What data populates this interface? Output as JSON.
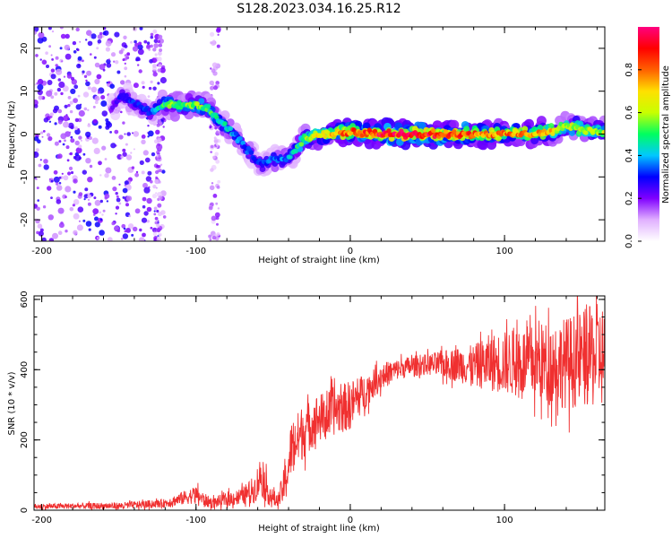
{
  "title": "S128.2023.034.16.25.R12",
  "chart_data": [
    {
      "type": "heatmap",
      "xlabel": "Height of straight line (km)",
      "ylabel": "Frequency (Hz)",
      "xlim": [
        -205,
        165
      ],
      "ylim": [
        -25,
        25
      ],
      "xticks": [
        -200,
        -100,
        0,
        100
      ],
      "yticks": [
        -20,
        -10,
        0,
        10,
        20
      ],
      "colorbar": {
        "label": "Normalized spectral amplitude",
        "range": [
          0,
          1
        ],
        "ticks": [
          "0.0",
          "0.2",
          "0.4",
          "0.6",
          "0.8"
        ],
        "colormap": [
          "#ffffff",
          "#e0b0ff",
          "#8000ff",
          "#0000ff",
          "#00c8ff",
          "#00ff60",
          "#c8ff00",
          "#ffe000",
          "#ff6000",
          "#ff0000",
          "#ff0080"
        ]
      },
      "ridge": {
        "description_points_x": [
          -155,
          -148,
          -140,
          -130,
          -120,
          -110,
          -100,
          -92,
          -85,
          -78,
          -70,
          -62,
          -57,
          -52,
          -45,
          -38,
          -30,
          -20,
          -10,
          0,
          20,
          50,
          80,
          110,
          130,
          140,
          150,
          165
        ],
        "frequency_y": [
          6,
          9,
          7,
          5,
          7,
          6.5,
          7,
          6,
          3,
          1,
          -2,
          -6,
          -7,
          -6,
          -6,
          -5,
          -1,
          0,
          0.5,
          0.5,
          0,
          0,
          0,
          0,
          0.5,
          2,
          1,
          0.5
        ],
        "amplitude": [
          0.2,
          0.3,
          0.3,
          0.3,
          0.5,
          0.55,
          0.55,
          0.5,
          0.45,
          0.4,
          0.35,
          0.3,
          0.3,
          0.35,
          0.35,
          0.4,
          0.55,
          0.65,
          0.75,
          0.8,
          0.9,
          0.9,
          0.8,
          0.75,
          0.7,
          0.55,
          0.6,
          0.6
        ]
      }
    },
    {
      "type": "line",
      "xlabel": "Height of straight line (km)",
      "ylabel": "SNR (10 * v/v)",
      "xlim": [
        -205,
        165
      ],
      "ylim": [
        0,
        610
      ],
      "xticks": [
        -200,
        -100,
        0,
        100
      ],
      "yticks": [
        0,
        200,
        400,
        600
      ],
      "color": "#f03030",
      "series": [
        {
          "x": [
            -205,
            -180,
            -150,
            -120,
            -100,
            -95,
            -90,
            -80,
            -70,
            -62,
            -58,
            -52,
            -47,
            -42,
            -38,
            -34,
            -30,
            -26,
            -22,
            -18,
            -14,
            -10,
            -5,
            0,
            5,
            10,
            15,
            20,
            30,
            40,
            50,
            60,
            70,
            80,
            90,
            100,
            110,
            120,
            130,
            140,
            150,
            160,
            165
          ],
          "y": [
            10,
            12,
            12,
            20,
            45,
            30,
            20,
            30,
            40,
            60,
            100,
            40,
            25,
            80,
            180,
            200,
            230,
            240,
            260,
            265,
            270,
            285,
            290,
            300,
            320,
            340,
            360,
            380,
            400,
            410,
            415,
            415,
            415,
            410,
            420,
            420,
            420,
            420,
            420,
            420,
            430,
            440,
            440
          ],
          "spread": [
            8,
            8,
            10,
            12,
            25,
            20,
            15,
            20,
            25,
            40,
            60,
            30,
            20,
            60,
            80,
            80,
            80,
            70,
            70,
            70,
            70,
            70,
            70,
            70,
            60,
            50,
            40,
            40,
            30,
            30,
            30,
            40,
            50,
            60,
            80,
            90,
            100,
            110,
            120,
            130,
            140,
            150,
            150
          ]
        }
      ]
    }
  ]
}
